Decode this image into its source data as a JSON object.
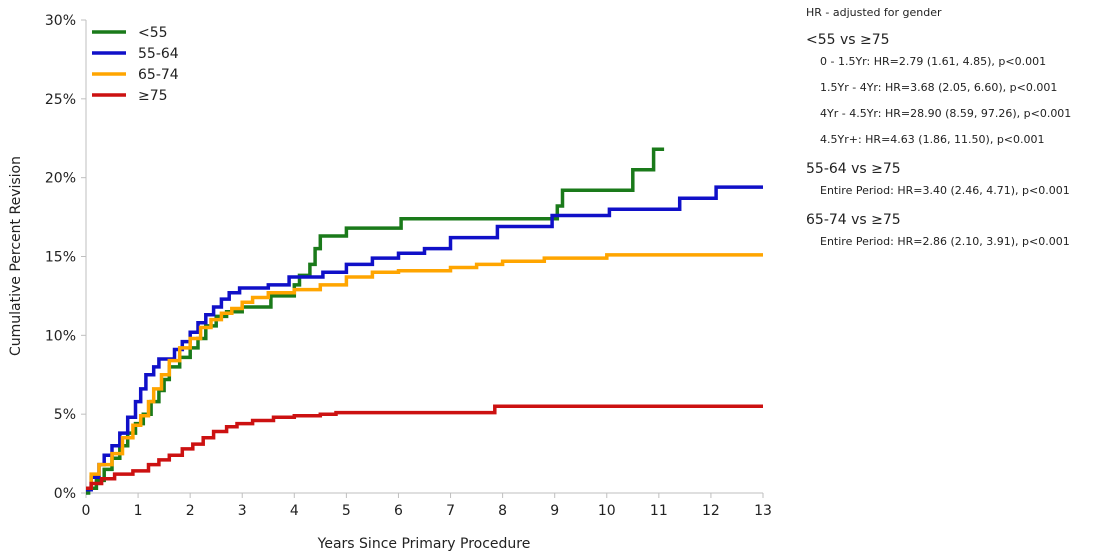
{
  "chart_data": {
    "type": "line",
    "step": true,
    "xlabel": "Years Since Primary Procedure",
    "ylabel": "Cumulative Percent Revision",
    "xlim": [
      0,
      13
    ],
    "ylim": [
      0,
      30
    ],
    "x_ticks": [
      "0",
      "1",
      "2",
      "3",
      "4",
      "5",
      "6",
      "7",
      "8",
      "9",
      "10",
      "11",
      "12",
      "13"
    ],
    "y_ticks": [
      "0%",
      "5%",
      "10%",
      "15%",
      "20%",
      "25%",
      "30%"
    ],
    "grid": false,
    "legend_position": "top-left",
    "series": [
      {
        "name": "<55",
        "color": "#1a7a1a",
        "points": [
          [
            0,
            0
          ],
          [
            0.05,
            0.3
          ],
          [
            0.2,
            0.8
          ],
          [
            0.35,
            1.5
          ],
          [
            0.5,
            2.2
          ],
          [
            0.65,
            3.0
          ],
          [
            0.8,
            3.8
          ],
          [
            0.95,
            4.4
          ],
          [
            1.1,
            5.0
          ],
          [
            1.25,
            5.8
          ],
          [
            1.4,
            6.5
          ],
          [
            1.5,
            7.2
          ],
          [
            1.6,
            8.0
          ],
          [
            1.8,
            8.6
          ],
          [
            2.0,
            9.2
          ],
          [
            2.15,
            9.8
          ],
          [
            2.3,
            10.6
          ],
          [
            2.5,
            11.2
          ],
          [
            2.7,
            11.5
          ],
          [
            2.9,
            11.5
          ],
          [
            3.0,
            11.8
          ],
          [
            3.5,
            11.8
          ],
          [
            3.55,
            12.5
          ],
          [
            3.9,
            12.5
          ],
          [
            4.0,
            13.2
          ],
          [
            4.1,
            13.8
          ],
          [
            4.3,
            14.5
          ],
          [
            4.4,
            15.5
          ],
          [
            4.5,
            16.3
          ],
          [
            4.95,
            16.3
          ],
          [
            5.0,
            16.8
          ],
          [
            6.0,
            16.8
          ],
          [
            6.05,
            17.4
          ],
          [
            9.0,
            17.4
          ],
          [
            9.05,
            18.2
          ],
          [
            9.15,
            19.2
          ],
          [
            10.45,
            19.2
          ],
          [
            10.5,
            20.5
          ],
          [
            10.85,
            20.5
          ],
          [
            10.9,
            21.8
          ],
          [
            11.1,
            21.8
          ]
        ]
      },
      {
        "name": "55-64",
        "color": "#1010c8",
        "points": [
          [
            0,
            0.2
          ],
          [
            0.1,
            1.0
          ],
          [
            0.25,
            1.8
          ],
          [
            0.35,
            2.4
          ],
          [
            0.5,
            3.0
          ],
          [
            0.65,
            3.8
          ],
          [
            0.8,
            4.8
          ],
          [
            0.95,
            5.8
          ],
          [
            1.05,
            6.6
          ],
          [
            1.15,
            7.5
          ],
          [
            1.3,
            8.0
          ],
          [
            1.4,
            8.5
          ],
          [
            1.6,
            8.5
          ],
          [
            1.7,
            9.1
          ],
          [
            1.85,
            9.6
          ],
          [
            2.0,
            10.2
          ],
          [
            2.15,
            10.8
          ],
          [
            2.3,
            11.3
          ],
          [
            2.45,
            11.8
          ],
          [
            2.6,
            12.3
          ],
          [
            2.75,
            12.7
          ],
          [
            2.95,
            13.0
          ],
          [
            3.5,
            13.2
          ],
          [
            3.9,
            13.7
          ],
          [
            4.5,
            13.7
          ],
          [
            4.55,
            14.0
          ],
          [
            5.0,
            14.5
          ],
          [
            5.5,
            14.9
          ],
          [
            6.0,
            15.2
          ],
          [
            6.5,
            15.5
          ],
          [
            7.0,
            16.2
          ],
          [
            7.8,
            16.2
          ],
          [
            7.9,
            16.9
          ],
          [
            8.5,
            16.9
          ],
          [
            8.95,
            17.6
          ],
          [
            10.0,
            17.6
          ],
          [
            10.05,
            18.0
          ],
          [
            11.3,
            18.0
          ],
          [
            11.4,
            18.7
          ],
          [
            12.05,
            18.7
          ],
          [
            12.1,
            19.4
          ],
          [
            13.0,
            19.4
          ]
        ]
      },
      {
        "name": "65-74",
        "color": "#ffa500",
        "points": [
          [
            0,
            0.3
          ],
          [
            0.1,
            1.2
          ],
          [
            0.25,
            1.8
          ],
          [
            0.5,
            2.5
          ],
          [
            0.7,
            3.5
          ],
          [
            0.9,
            4.3
          ],
          [
            1.05,
            4.9
          ],
          [
            1.2,
            5.8
          ],
          [
            1.3,
            6.6
          ],
          [
            1.45,
            7.5
          ],
          [
            1.6,
            8.4
          ],
          [
            1.8,
            9.2
          ],
          [
            2.0,
            9.8
          ],
          [
            2.2,
            10.5
          ],
          [
            2.4,
            11.0
          ],
          [
            2.6,
            11.4
          ],
          [
            2.8,
            11.7
          ],
          [
            3.0,
            12.1
          ],
          [
            3.2,
            12.4
          ],
          [
            3.5,
            12.7
          ],
          [
            4.0,
            12.9
          ],
          [
            4.5,
            13.2
          ],
          [
            5.0,
            13.7
          ],
          [
            5.5,
            14.0
          ],
          [
            6.0,
            14.1
          ],
          [
            7.0,
            14.3
          ],
          [
            7.5,
            14.5
          ],
          [
            8.0,
            14.7
          ],
          [
            8.8,
            14.9
          ],
          [
            10.0,
            15.1
          ],
          [
            13.0,
            15.1
          ]
        ]
      },
      {
        "name": "≥75",
        "color": "#cc1111",
        "points": [
          [
            0,
            0.3
          ],
          [
            0.1,
            0.6
          ],
          [
            0.3,
            0.9
          ],
          [
            0.55,
            1.2
          ],
          [
            0.9,
            1.4
          ],
          [
            1.2,
            1.8
          ],
          [
            1.4,
            2.1
          ],
          [
            1.6,
            2.4
          ],
          [
            1.85,
            2.8
          ],
          [
            2.05,
            3.1
          ],
          [
            2.25,
            3.5
          ],
          [
            2.45,
            3.9
          ],
          [
            2.7,
            4.2
          ],
          [
            2.9,
            4.4
          ],
          [
            3.2,
            4.6
          ],
          [
            3.6,
            4.8
          ],
          [
            4.0,
            4.9
          ],
          [
            4.5,
            5.0
          ],
          [
            4.8,
            5.1
          ],
          [
            7.8,
            5.1
          ],
          [
            7.85,
            5.5
          ],
          [
            13.0,
            5.5
          ]
        ]
      }
    ]
  },
  "hr_notes": {
    "title": "HR - adjusted for gender",
    "groups": [
      {
        "label": "<55 vs ≥75",
        "lines": [
          "0 - 1.5Yr: HR=2.79 (1.61, 4.85), p<0.001",
          "1.5Yr - 4Yr: HR=3.68 (2.05, 6.60), p<0.001",
          "4Yr - 4.5Yr: HR=28.90 (8.59, 97.26), p<0.001",
          "4.5Yr+: HR=4.63 (1.86, 11.50), p<0.001"
        ]
      },
      {
        "label": "55-64 vs ≥75",
        "lines": [
          "Entire Period: HR=3.40 (2.46, 4.71), p<0.001"
        ]
      },
      {
        "label": "65-74 vs ≥75",
        "lines": [
          "Entire Period: HR=2.86 (2.10, 3.91), p<0.001"
        ]
      }
    ]
  }
}
